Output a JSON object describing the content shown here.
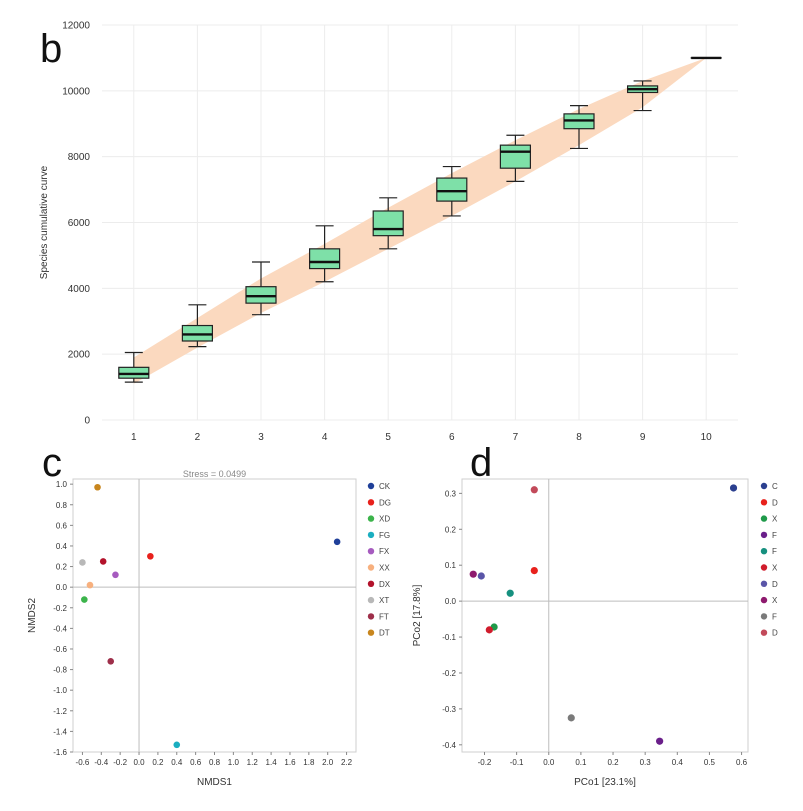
{
  "chart_data": [
    {
      "panel": "b",
      "type": "box",
      "ylabel": "Species cumulative curve",
      "xlabel": "",
      "categories": [
        "1",
        "2",
        "3",
        "4",
        "5",
        "6",
        "7",
        "8",
        "9",
        "10"
      ],
      "ylim": [
        0,
        12000
      ],
      "yticks": [
        0,
        2000,
        4000,
        6000,
        8000,
        10000,
        12000
      ],
      "grid": true,
      "box_color": "#7ee0a8",
      "band_color": "#fbd9bf",
      "boxes": [
        {
          "min": 1150,
          "q1": 1270,
          "median": 1400,
          "q3": 1600,
          "max": 2050
        },
        {
          "min": 2230,
          "q1": 2400,
          "median": 2600,
          "q3": 2870,
          "max": 3500
        },
        {
          "min": 3200,
          "q1": 3550,
          "median": 3760,
          "q3": 4050,
          "max": 4800
        },
        {
          "min": 4200,
          "q1": 4600,
          "median": 4800,
          "q3": 5200,
          "max": 5900
        },
        {
          "min": 5200,
          "q1": 5600,
          "median": 5800,
          "q3": 6350,
          "max": 6750
        },
        {
          "min": 6200,
          "q1": 6650,
          "median": 6950,
          "q3": 7350,
          "max": 7700
        },
        {
          "min": 7250,
          "q1": 7650,
          "median": 8150,
          "q3": 8350,
          "max": 8650
        },
        {
          "min": 8250,
          "q1": 8850,
          "median": 9100,
          "q3": 9300,
          "max": 9550
        },
        {
          "min": 9400,
          "q1": 9950,
          "median": 10050,
          "q3": 10150,
          "max": 10300
        },
        {
          "min": 11000,
          "q1": 11000,
          "median": 11000,
          "q3": 11000,
          "max": 11000
        }
      ],
      "band": {
        "upper": [
          1900,
          3100,
          4300,
          5350,
          6450,
          7500,
          8500,
          9450,
          10300,
          11000
        ],
        "lower": [
          1100,
          2200,
          3250,
          4200,
          5200,
          6200,
          7250,
          8350,
          9500,
          11000
        ]
      }
    },
    {
      "panel": "c",
      "type": "scatter",
      "xlabel": "NMDS1",
      "ylabel": "NMDS2",
      "annotation": "Stress = 0.0499",
      "xlim": [
        -0.7,
        2.3
      ],
      "ylim": [
        -1.6,
        1.05
      ],
      "xticks": [
        -0.6,
        -0.4,
        -0.2,
        0.0,
        0.2,
        0.4,
        0.6,
        0.8,
        1.0,
        1.2,
        1.4,
        1.6,
        1.8,
        2.0,
        2.2
      ],
      "xtick_labels": [
        "-0.6",
        "-0.4",
        "-0.2",
        "0.0",
        "0.2",
        "0.4",
        "0.6",
        "0.8",
        "1.0",
        "1.2",
        "1.4",
        "1.6",
        "1.8",
        "2.0",
        "2.2"
      ],
      "yticks": [
        1.0,
        0.8,
        0.6,
        0.4,
        0.2,
        0.0,
        -0.2,
        -0.4,
        -0.6,
        -0.8,
        -1.0,
        -1.2,
        -1.4,
        -1.6
      ],
      "ytick_labels": [
        "1.0",
        "0.8",
        "0.6",
        "0.4",
        "0.2",
        "0.0",
        "-0.2",
        "-0.4",
        "-0.6",
        "-0.8",
        "-1.0",
        "-1.2",
        "-1.4",
        "-1.6"
      ],
      "zero_lines": true,
      "legend_position": "right",
      "points": [
        {
          "name": "CK",
          "color": "#1f3f99",
          "x": 2.1,
          "y": 0.44
        },
        {
          "name": "DG",
          "color": "#e8211c",
          "x": 0.12,
          "y": 0.3
        },
        {
          "name": "XD",
          "color": "#3cb44b",
          "x": -0.58,
          "y": -0.12
        },
        {
          "name": "FG",
          "color": "#1aaec0",
          "x": 0.4,
          "y": -1.53
        },
        {
          "name": "FX",
          "color": "#a65bbf",
          "x": -0.25,
          "y": 0.12
        },
        {
          "name": "XX",
          "color": "#f7b07e",
          "x": -0.52,
          "y": 0.02
        },
        {
          "name": "DX",
          "color": "#b3122b",
          "x": -0.38,
          "y": 0.25
        },
        {
          "name": "XT",
          "color": "#b8b8b8",
          "x": -0.6,
          "y": 0.24
        },
        {
          "name": "FT",
          "color": "#9e2f4a",
          "x": -0.3,
          "y": -0.72
        },
        {
          "name": "DT",
          "color": "#c8861e",
          "x": -0.44,
          "y": 0.97
        }
      ]
    },
    {
      "panel": "d",
      "type": "scatter",
      "xlabel": "PCo1 [23.1%]",
      "ylabel": "PCo2 [17.8%]",
      "xlim": [
        -0.27,
        0.62
      ],
      "ylim": [
        -0.42,
        0.34
      ],
      "xticks": [
        -0.2,
        -0.1,
        0.0,
        0.1,
        0.2,
        0.3,
        0.4,
        0.5,
        0.6
      ],
      "xtick_labels": [
        "-0.2",
        "-0.1",
        "0.0",
        "0.1",
        "0.2",
        "0.3",
        "0.4",
        "0.5",
        "0.6"
      ],
      "yticks": [
        0.3,
        0.2,
        0.1,
        0.0,
        -0.1,
        -0.2,
        -0.3,
        -0.4
      ],
      "ytick_labels": [
        "0.3",
        "0.2",
        "0.1",
        "0.0",
        "-0.1",
        "-0.2",
        "-0.3",
        "-0.4"
      ],
      "zero_lines": true,
      "legend_position": "right",
      "legend_labels": [
        "C",
        "D",
        "X",
        "F",
        "F",
        "X",
        "D",
        "X",
        "F",
        "D"
      ],
      "points": [
        {
          "color": "#2b3f8f",
          "x": 0.575,
          "y": 0.315
        },
        {
          "color": "#e8211c",
          "x": -0.045,
          "y": 0.085
        },
        {
          "color": "#1f9a4a",
          "x": -0.17,
          "y": -0.072
        },
        {
          "color": "#6a1f8a",
          "x": 0.345,
          "y": -0.39
        },
        {
          "color": "#16907f",
          "x": -0.12,
          "y": 0.022
        },
        {
          "color": "#d01c2c",
          "x": -0.185,
          "y": -0.08
        },
        {
          "color": "#5a55a8",
          "x": -0.21,
          "y": 0.07
        },
        {
          "color": "#8e1a6e",
          "x": -0.235,
          "y": 0.075
        },
        {
          "color": "#7a7a7a",
          "x": 0.07,
          "y": -0.325
        },
        {
          "color": "#c24a5a",
          "x": -0.045,
          "y": 0.31
        }
      ]
    }
  ],
  "panels": {
    "b": "b",
    "c": "c",
    "d": "d"
  }
}
